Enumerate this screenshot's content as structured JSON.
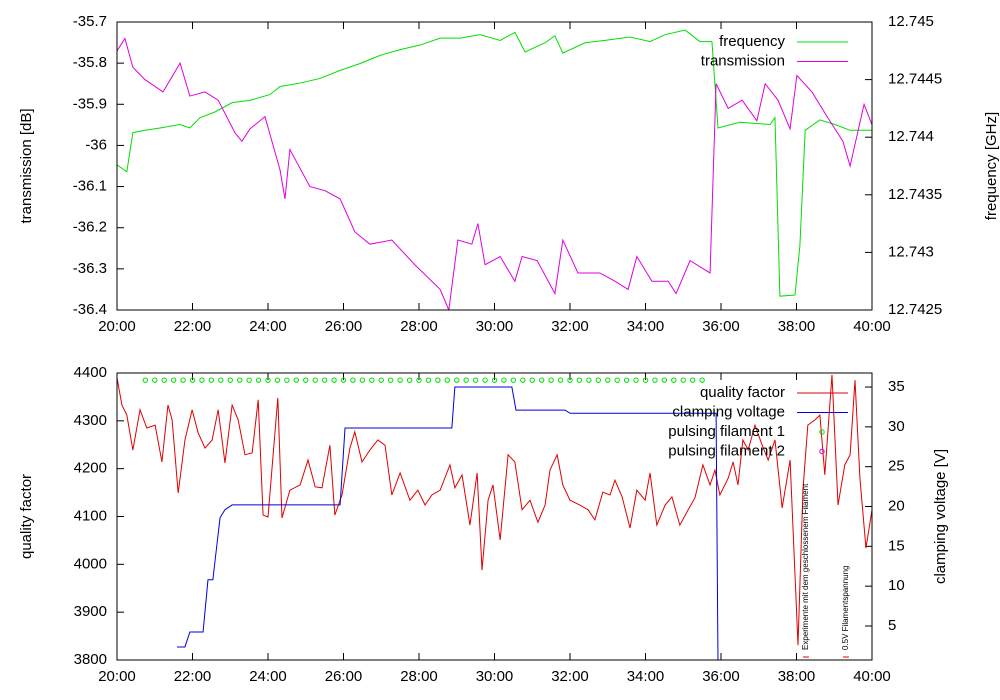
{
  "chart_data": [
    {
      "type": "line",
      "ylabel": "transmission [dB]",
      "y2label": "frequency [GHz]",
      "legend": "top right",
      "xlim": [
        20,
        40
      ],
      "xticks": [
        {
          "value": 20,
          "label": "20:00"
        },
        {
          "value": 22,
          "label": "22:00"
        },
        {
          "value": 24,
          "label": "24:00"
        },
        {
          "value": 26,
          "label": "26:00"
        },
        {
          "value": 28,
          "label": "28:00"
        },
        {
          "value": 30,
          "label": "30:00"
        },
        {
          "value": 32,
          "label": "32:00"
        },
        {
          "value": 34,
          "label": "34:00"
        },
        {
          "value": 36,
          "label": "36:00"
        },
        {
          "value": 38,
          "label": "38:00"
        },
        {
          "value": 40,
          "label": "40:00"
        }
      ],
      "ylim": [
        -36.4,
        -35.7
      ],
      "yticks": [
        -36.4,
        -36.3,
        -36.2,
        -36.1,
        -36,
        -35.9,
        -35.8,
        -35.7
      ],
      "y2lim": [
        12.7425,
        12.745
      ],
      "y2ticks": [
        12.7425,
        12.743,
        12.7435,
        12.744,
        12.7445,
        12.745
      ],
      "series": [
        {
          "name": "frequency",
          "color": "#00e000",
          "axis": "y2",
          "style": "line",
          "x": [
            20.0,
            20.26,
            20.42,
            20.74,
            21.14,
            21.67,
            21.93,
            22.2,
            22.6,
            23.05,
            23.52,
            24.05,
            24.32,
            24.85,
            25.38,
            25.91,
            26.44,
            26.97,
            27.5,
            28.03,
            28.56,
            29.09,
            29.62,
            30.15,
            30.54,
            30.81,
            31.34,
            31.6,
            31.81,
            32.4,
            32.93,
            33.59,
            34.12,
            34.52,
            35.05,
            35.44,
            35.76,
            35.92,
            36.5,
            37.3,
            37.43,
            37.56,
            37.96,
            38.09,
            38.23,
            38.62,
            39.02,
            39.42,
            40.0
          ],
          "values": [
            12.74376,
            12.7437,
            12.74404,
            12.74406,
            12.74408,
            12.74411,
            12.74408,
            12.74417,
            12.74422,
            12.7443,
            12.74432,
            12.74437,
            12.74444,
            12.74447,
            12.74451,
            12.74458,
            12.74464,
            12.74471,
            12.74476,
            12.7448,
            12.74486,
            12.74486,
            12.74489,
            12.74484,
            12.74491,
            12.74474,
            12.74482,
            12.74488,
            12.74473,
            12.74482,
            12.74484,
            12.74487,
            12.74483,
            12.74489,
            12.74493,
            12.74483,
            12.74483,
            12.74408,
            12.74413,
            12.74411,
            12.74417,
            12.74262,
            12.74263,
            12.74306,
            12.74406,
            12.74415,
            12.74411,
            12.74406,
            12.74406
          ]
        },
        {
          "name": "transmission",
          "color": "#e000e0",
          "axis": "y",
          "style": "line",
          "x": [
            20.0,
            20.21,
            20.42,
            20.74,
            21.22,
            21.67,
            21.93,
            22.33,
            22.68,
            23.13,
            23.31,
            23.52,
            23.92,
            24.32,
            24.45,
            24.58,
            25.11,
            25.51,
            25.91,
            26.3,
            26.7,
            27.28,
            27.89,
            28.56,
            28.79,
            29.03,
            29.4,
            29.56,
            29.75,
            30.15,
            30.54,
            30.73,
            31.13,
            31.6,
            31.81,
            32.21,
            32.79,
            33.19,
            33.54,
            33.77,
            34.17,
            34.6,
            34.81,
            35.18,
            35.71,
            35.87,
            36.19,
            36.56,
            36.95,
            37.17,
            37.51,
            37.83,
            38.01,
            38.41,
            38.81,
            39.23,
            39.42,
            39.79,
            40.0
          ],
          "values": [
            -35.77,
            -35.74,
            -35.81,
            -35.84,
            -35.87,
            -35.8,
            -35.88,
            -35.87,
            -35.89,
            -35.97,
            -35.99,
            -35.96,
            -35.93,
            -36.06,
            -36.13,
            -36.01,
            -36.1,
            -36.11,
            -36.13,
            -36.21,
            -36.24,
            -36.23,
            -36.29,
            -36.35,
            -36.4,
            -36.23,
            -36.24,
            -36.19,
            -36.29,
            -36.27,
            -36.33,
            -36.27,
            -36.28,
            -36.36,
            -36.23,
            -36.31,
            -36.31,
            -36.33,
            -36.35,
            -36.27,
            -36.33,
            -36.33,
            -36.36,
            -36.28,
            -36.31,
            -35.85,
            -35.91,
            -35.89,
            -35.94,
            -35.85,
            -35.89,
            -35.96,
            -35.83,
            -35.87,
            -35.93,
            -35.99,
            -36.05,
            -35.9,
            -35.95
          ]
        }
      ]
    },
    {
      "type": "line",
      "ylabel": "quality factor",
      "y2label": "clamping voltage [V]",
      "legend": "top right",
      "xlim": [
        20,
        40
      ],
      "xticks": [
        {
          "value": 20,
          "label": "20:00"
        },
        {
          "value": 22,
          "label": "22:00"
        },
        {
          "value": 24,
          "label": "24:00"
        },
        {
          "value": 26,
          "label": "26:00"
        },
        {
          "value": 28,
          "label": "28:00"
        },
        {
          "value": 30,
          "label": "30:00"
        },
        {
          "value": 32,
          "label": "32:00"
        },
        {
          "value": 34,
          "label": "34:00"
        },
        {
          "value": 36,
          "label": "36:00"
        },
        {
          "value": 38,
          "label": "38:00"
        },
        {
          "value": 40,
          "label": "40:00"
        }
      ],
      "ylim": [
        3800,
        4400
      ],
      "yticks": [
        3800,
        3900,
        4000,
        4100,
        4200,
        4300,
        4400
      ],
      "y2lim": [
        0.73,
        36.76
      ],
      "y2ticks": [
        5,
        10,
        15,
        20,
        25,
        30,
        35
      ],
      "series": [
        {
          "name": "quality factor",
          "color": "#e00000",
          "axis": "y",
          "style": "line",
          "x": [
            20.0,
            20.13,
            20.26,
            20.42,
            20.61,
            20.79,
            21.01,
            21.19,
            21.35,
            21.46,
            21.62,
            21.8,
            21.99,
            22.15,
            22.33,
            22.52,
            22.68,
            22.86,
            23.05,
            23.21,
            23.39,
            23.58,
            23.74,
            23.87,
            24.0,
            24.26,
            24.37,
            24.58,
            24.85,
            25.06,
            25.25,
            25.43,
            25.64,
            25.77,
            25.96,
            26.17,
            26.3,
            26.49,
            26.7,
            26.91,
            27.1,
            27.28,
            27.5,
            27.76,
            27.97,
            28.16,
            28.34,
            28.56,
            28.82,
            28.95,
            29.14,
            29.35,
            29.54,
            29.67,
            29.83,
            29.96,
            30.15,
            30.36,
            30.54,
            30.73,
            30.94,
            31.15,
            31.34,
            31.47,
            31.66,
            31.81,
            32.0,
            32.26,
            32.48,
            32.66,
            32.87,
            33.06,
            33.19,
            33.38,
            33.59,
            33.77,
            33.99,
            34.12,
            34.3,
            34.52,
            34.7,
            34.91,
            35.13,
            35.31,
            35.52,
            35.71,
            35.84,
            35.97,
            36.19,
            36.32,
            36.45,
            36.58,
            36.72,
            36.9,
            37.09,
            37.25,
            37.43,
            37.62,
            37.83,
            38.04,
            38.17,
            38.3,
            38.49,
            38.62,
            38.75,
            38.94,
            39.1,
            39.28,
            39.42,
            39.55,
            39.68,
            39.84,
            40.0
          ],
          "values": [
            4390,
            4333,
            4312,
            4239,
            4323,
            4285,
            4291,
            4214,
            4333,
            4302,
            4149,
            4260,
            4323,
            4275,
            4243,
            4260,
            4323,
            4212,
            4333,
            4302,
            4229,
            4233,
            4344,
            4103,
            4099,
            4348,
            4097,
            4155,
            4166,
            4218,
            4162,
            4160,
            4249,
            4103,
            4145,
            4243,
            4277,
            4214,
            4239,
            4260,
            4249,
            4145,
            4191,
            4134,
            4155,
            4124,
            4145,
            4155,
            4208,
            4160,
            4187,
            4082,
            4191,
            3988,
            4134,
            4166,
            4051,
            4229,
            4214,
            4114,
            4134,
            4088,
            4124,
            4197,
            4229,
            4166,
            4134,
            4124,
            4114,
            4093,
            4151,
            4145,
            4176,
            4141,
            4076,
            4155,
            4134,
            4191,
            4082,
            4124,
            4141,
            4082,
            4114,
            4139,
            4208,
            4166,
            4197,
            4145,
            4180,
            4214,
            4166,
            4260,
            4239,
            4291,
            4249,
            4218,
            4260,
            4118,
            4218,
            3831,
            4155,
            4291,
            4302,
            4312,
            4187,
            4396,
            4124,
            4208,
            4229,
            4385,
            4180,
            4034,
            4114
          ]
        },
        {
          "name": "clamping voltage",
          "color": "#0000e0",
          "axis": "y2",
          "style": "line",
          "x": [
            21.59,
            21.8,
            21.93,
            22.28,
            22.41,
            22.54,
            22.6,
            22.73,
            22.86,
            23.05,
            25.91,
            26.04,
            28.87,
            28.95,
            30.46,
            30.57,
            31.87,
            32.0,
            35.87,
            35.92
          ],
          "values": [
            2.37,
            2.37,
            4.25,
            4.25,
            10.8,
            10.8,
            13.3,
            18.6,
            19.6,
            20.2,
            20.2,
            29.85,
            29.85,
            35,
            35,
            32.1,
            32.1,
            31.7,
            31.7,
            0.73
          ]
        },
        {
          "name": "pulsing filament 1",
          "color": "#00e000",
          "axis": "y",
          "style": "points",
          "x": [
            20.75,
            21,
            21.25,
            21.5,
            21.75,
            22,
            22.25,
            22.5,
            22.75,
            23,
            23.25,
            23.5,
            23.75,
            24,
            24.25,
            24.5,
            24.75,
            25,
            25.25,
            25.5,
            25.75,
            26,
            26.25,
            26.5,
            26.75,
            27,
            27.25,
            27.5,
            27.75,
            28,
            28.25,
            28.5,
            28.75,
            29,
            29.25,
            29.5,
            29.75,
            30,
            30.25,
            30.5,
            30.75,
            31,
            31.25,
            31.5,
            31.75,
            32,
            32.25,
            32.5,
            32.75,
            33,
            33.25,
            33.5,
            33.75,
            34,
            34.25,
            34.5,
            34.75,
            35,
            35.25,
            35.5
          ],
          "values": [
            4385,
            4385,
            4385,
            4385,
            4385,
            4385,
            4385,
            4385,
            4385,
            4385,
            4385,
            4385,
            4385,
            4385,
            4385,
            4385,
            4385,
            4385,
            4385,
            4385,
            4385,
            4385,
            4385,
            4385,
            4385,
            4385,
            4385,
            4385,
            4385,
            4385,
            4385,
            4385,
            4385,
            4385,
            4385,
            4385,
            4385,
            4385,
            4385,
            4385,
            4385,
            4385,
            4385,
            4385,
            4385,
            4385,
            4385,
            4385,
            4385,
            4385,
            4385,
            4385,
            4385,
            4385,
            4385,
            4385,
            4385,
            4385,
            4385,
            4385
          ]
        },
        {
          "name": "pulsing filament 2",
          "color": "#e000e0",
          "axis": "y",
          "style": "points",
          "x": [],
          "values": []
        }
      ],
      "annotations": [
        {
          "text": "Experimente mit dem geschlossenem Filament",
          "x": 38.25
        },
        {
          "text": "0.5V Filamentspannung",
          "x": 39.31
        }
      ]
    }
  ]
}
